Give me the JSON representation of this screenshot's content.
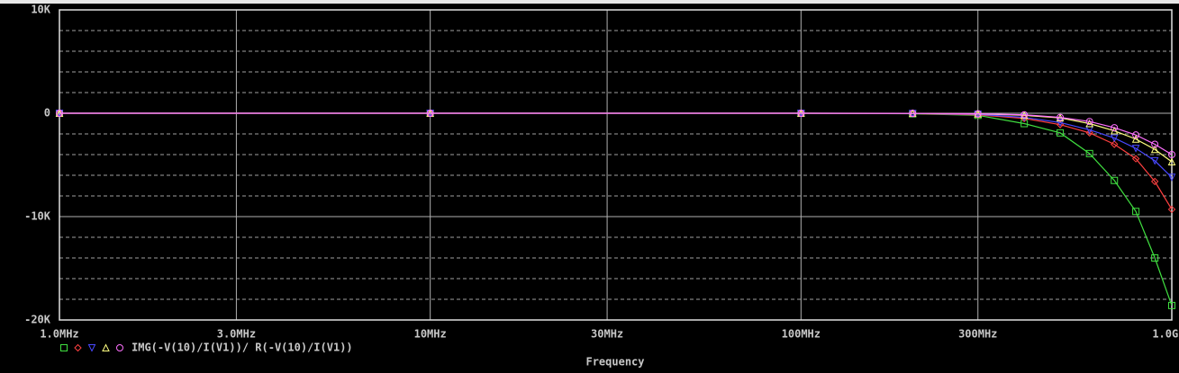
{
  "chart_data": {
    "type": "line",
    "xscale": "log",
    "xlabel": "Frequency",
    "legend_label": "IMG(-V(10)/I(V1))/ R(-V(10)/I(V1))",
    "xlim": [
      1000000,
      1000000000
    ],
    "ylim": [
      -20000,
      10000
    ],
    "xticks": [
      {
        "value": 1000000,
        "label": "1.0MHz"
      },
      {
        "value": 3000000,
        "label": "3.0MHz"
      },
      {
        "value": 10000000,
        "label": "10MHz"
      },
      {
        "value": 30000000,
        "label": "30MHz"
      },
      {
        "value": 100000000,
        "label": "100MHz"
      },
      {
        "value": 300000000,
        "label": "300MHz"
      },
      {
        "value": 1000000000,
        "label": "1.0GHz"
      }
    ],
    "yticks": [
      {
        "value": 10000,
        "label": "10K"
      },
      {
        "value": 0,
        "label": "0"
      },
      {
        "value": -10000,
        "label": "-10K"
      },
      {
        "value": -20000,
        "label": "-20K"
      }
    ],
    "yminor": [
      8000,
      6000,
      4000,
      2000,
      -2000,
      -4000,
      -6000,
      -8000,
      -12000,
      -14000,
      -16000,
      -18000
    ],
    "grid": true,
    "background": "#000000",
    "x": [
      1000000,
      10000000,
      100000000,
      200000000,
      300000000,
      400000000,
      500000000,
      600000000,
      700000000,
      800000000,
      900000000,
      1000000000
    ],
    "series": [
      {
        "color": "#40e040",
        "marker": "square",
        "values": [
          0,
          0,
          0,
          -50,
          -200,
          -1000,
          -1900,
          -3900,
          -6500,
          -9500,
          -14000,
          -18600
        ]
      },
      {
        "color": "#ff4040",
        "marker": "diamond",
        "values": [
          0,
          0,
          0,
          -30,
          -150,
          -500,
          -1100,
          -1900,
          -3000,
          -4400,
          -6600,
          -9300
        ]
      },
      {
        "color": "#4848ff",
        "marker": "triangle-down",
        "values": [
          0,
          0,
          0,
          -20,
          -100,
          -400,
          -900,
          -1600,
          -2400,
          -3400,
          -4600,
          -6200
        ]
      },
      {
        "color": "#ffff80",
        "marker": "triangle-up",
        "values": [
          0,
          0,
          0,
          -10,
          -60,
          -200,
          -450,
          -1000,
          -1700,
          -2500,
          -3500,
          -4700
        ]
      },
      {
        "color": "#ff70ff",
        "marker": "circle",
        "values": [
          0,
          0,
          0,
          -10,
          -50,
          -150,
          -400,
          -800,
          -1400,
          -2100,
          -3000,
          -4000
        ]
      }
    ]
  }
}
